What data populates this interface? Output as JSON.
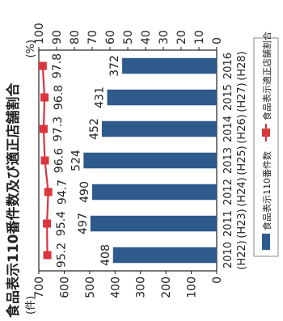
{
  "chart_data": {
    "type": "bar+line",
    "orientation": "rotated 90 degrees counter-clockwise",
    "title": "食品表示110番件数及び適正店舗割合",
    "categories": [
      "2010 (H22)",
      "2011 (H23)",
      "2012 (H24)",
      "2013 (H25)",
      "2014 (H26)",
      "2015 (H27)",
      "2016 (H28)"
    ],
    "series": [
      {
        "name": "食品表示110番件数",
        "kind": "bar",
        "axis": "left",
        "values": [
          408,
          497,
          490,
          524,
          452,
          431,
          372
        ],
        "color": "#2e5a8c"
      },
      {
        "name": "食品表示適正店舗割合",
        "kind": "line",
        "axis": "right",
        "values": [
          95.2,
          95.4,
          94.7,
          96.6,
          97.3,
          96.8,
          97.8
        ],
        "color": "#d9363e"
      }
    ],
    "y_left": {
      "unit": "(件)",
      "range": [
        0,
        700
      ],
      "ticks": [
        "0",
        "100",
        "200",
        "300",
        "400",
        "500",
        "600",
        "700"
      ]
    },
    "y_right": {
      "unit": "(%)",
      "range": [
        0,
        100
      ],
      "ticks": [
        "0",
        "10",
        "20",
        "30",
        "40",
        "50",
        "60",
        "70",
        "80",
        "90",
        "100"
      ]
    },
    "grid": false,
    "legend_position": "bottom"
  }
}
